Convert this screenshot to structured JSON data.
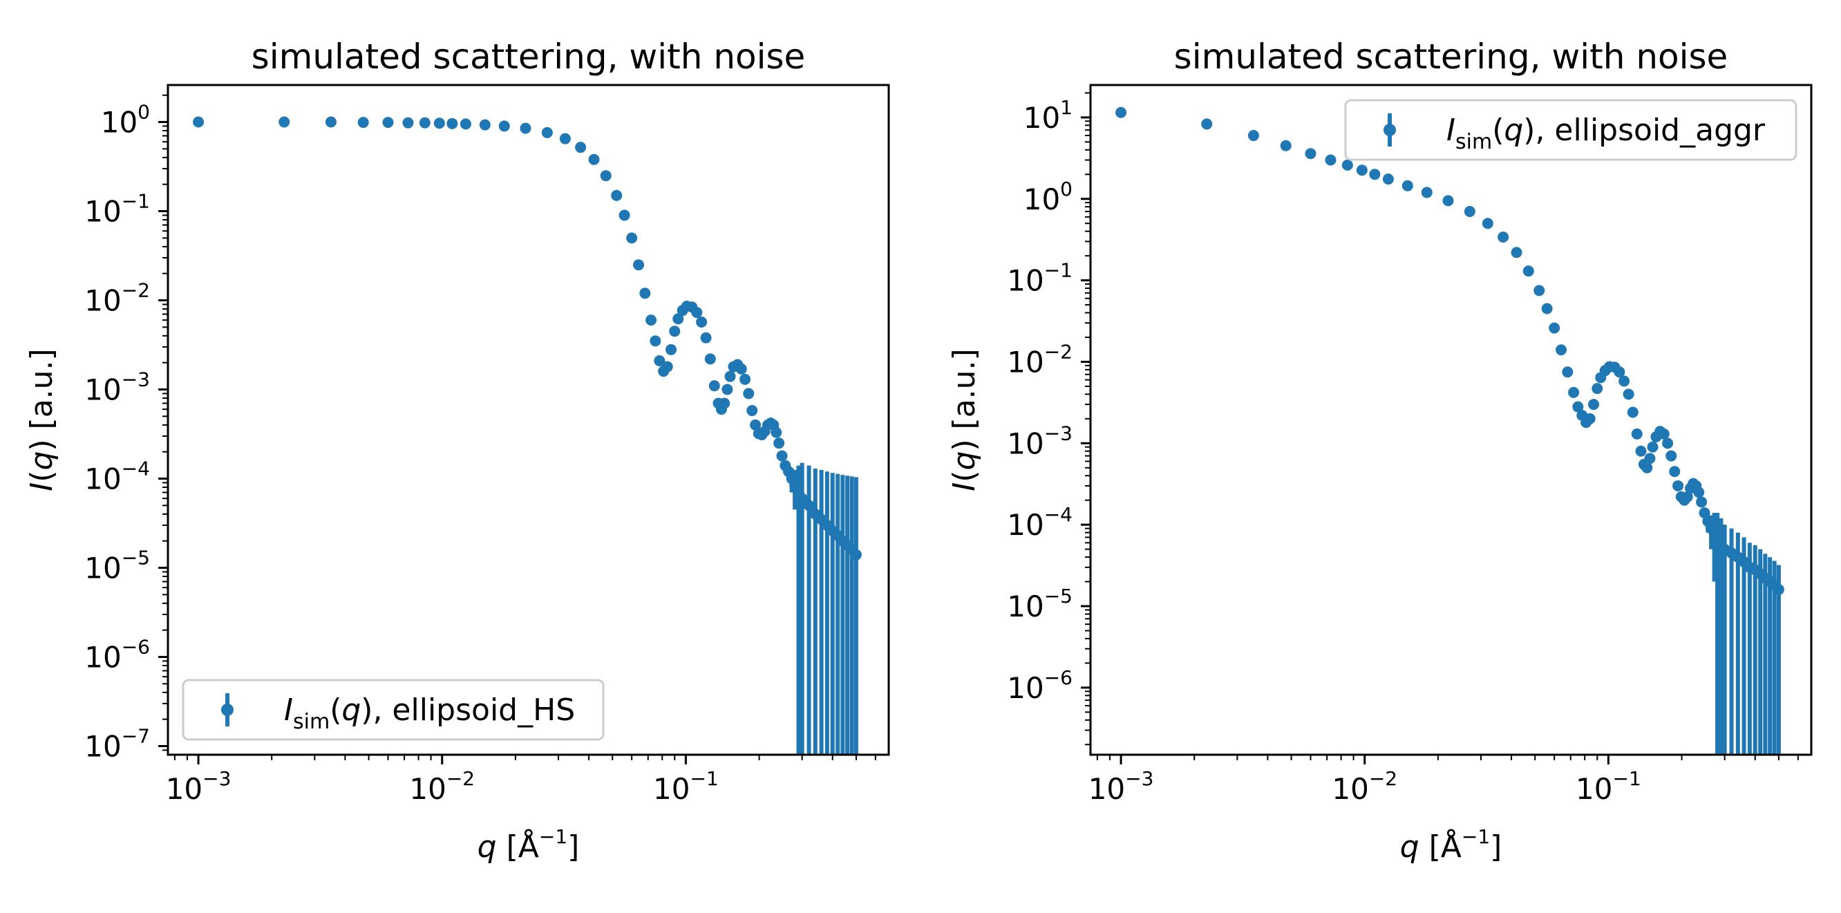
{
  "chart_data": [
    {
      "type": "scatter",
      "title": "simulated scattering, with noise",
      "xlabel": {
        "main": "q",
        "unit_prefix": "[Å",
        "unit_exp": "−1",
        "unit_suffix": "]"
      },
      "ylabel": {
        "main": "I",
        "arg": "(q)",
        "unit": "[a.u.]"
      },
      "xscale": "log",
      "yscale": "log",
      "xlim": [
        0.00075,
        0.68
      ],
      "ylim": [
        8e-08,
        2.6
      ],
      "xticks": [
        {
          "value": 0.001,
          "base": "10",
          "exp": "−3"
        },
        {
          "value": 0.01,
          "base": "10",
          "exp": "−2"
        },
        {
          "value": 0.1,
          "base": "10",
          "exp": "−1"
        }
      ],
      "yticks": [
        {
          "value": 1,
          "base": "10",
          "exp": "0"
        },
        {
          "value": 0.1,
          "base": "10",
          "exp": "−1"
        },
        {
          "value": 0.01,
          "base": "10",
          "exp": "−2"
        },
        {
          "value": 0.001,
          "base": "10",
          "exp": "−3"
        },
        {
          "value": 0.0001,
          "base": "10",
          "exp": "−4"
        },
        {
          "value": 1e-05,
          "base": "10",
          "exp": "−5"
        },
        {
          "value": 1e-06,
          "base": "10",
          "exp": "−6"
        },
        {
          "value": 1e-07,
          "base": "10",
          "exp": "−7"
        }
      ],
      "legend": {
        "placement": "lower left",
        "symbol": "I",
        "subscript": "sim",
        "arg": "(q)",
        "label": ", ellipsoid_HS"
      },
      "color": "#1f77b4",
      "series": [
        {
          "x": [
            0.001,
            0.00225,
            0.0035,
            0.00475,
            0.006,
            0.00725,
            0.0085,
            0.00975,
            0.011,
            0.0125,
            0.015,
            0.018,
            0.022,
            0.027,
            0.032,
            0.037,
            0.042,
            0.047,
            0.052,
            0.056,
            0.06,
            0.064,
            0.068,
            0.072,
            0.075,
            0.078,
            0.081,
            0.084,
            0.087,
            0.09,
            0.093,
            0.097,
            0.101,
            0.106,
            0.111,
            0.116,
            0.121,
            0.126,
            0.131,
            0.136,
            0.14,
            0.144,
            0.148,
            0.152,
            0.157,
            0.163,
            0.169,
            0.175,
            0.181,
            0.187,
            0.193,
            0.199,
            0.205,
            0.211,
            0.217,
            0.223,
            0.229,
            0.235,
            0.241,
            0.248,
            0.256,
            0.264,
            0.272,
            0.28,
            0.29,
            0.3,
            0.32,
            0.34,
            0.36,
            0.38,
            0.4,
            0.42,
            0.44,
            0.46,
            0.48,
            0.5
          ],
          "y": [
            1.0,
            1.0,
            1.0,
            0.99,
            0.99,
            0.98,
            0.98,
            0.97,
            0.96,
            0.95,
            0.93,
            0.9,
            0.85,
            0.76,
            0.65,
            0.52,
            0.38,
            0.25,
            0.15,
            0.09,
            0.05,
            0.025,
            0.012,
            0.006,
            0.0035,
            0.0021,
            0.0016,
            0.0018,
            0.0028,
            0.0045,
            0.0062,
            0.0077,
            0.0086,
            0.0084,
            0.0073,
            0.0057,
            0.0038,
            0.0022,
            0.0011,
            0.0007,
            0.0006,
            0.0007,
            0.001,
            0.0014,
            0.0018,
            0.0019,
            0.0017,
            0.0013,
            0.0009,
            0.00058,
            0.0004,
            0.00032,
            0.00031,
            0.00034,
            0.0004,
            0.00042,
            0.0004,
            0.00033,
            0.00025,
            0.00018,
            0.00014,
            0.00012,
            0.0001,
            8.5e-05,
            7e-05,
            6e-05,
            5e-05,
            4e-05,
            3.5e-05,
            3e-05,
            2.6e-05,
            2.3e-05,
            2e-05,
            1.8e-05,
            1.6e-05,
            1.4e-05
          ],
          "yerr": [
            0,
            0,
            0,
            0,
            0,
            0,
            0,
            0,
            0,
            0,
            0,
            0,
            0,
            0,
            0,
            0,
            0,
            0,
            0,
            0,
            0,
            0,
            0,
            0,
            0,
            0,
            0,
            0,
            0,
            0,
            0,
            0,
            0,
            0,
            0,
            0,
            0,
            0,
            0,
            0,
            0,
            0,
            0,
            0,
            0,
            0,
            0,
            0,
            0,
            0,
            1e-05,
            1e-05,
            1e-05,
            1e-05,
            1e-05,
            1e-05,
            1e-05,
            1e-05,
            1e-05,
            2e-05,
            2e-05,
            2e-05,
            3e-05,
            4e-05,
            7e-05,
            9e-05,
            9e-05,
            9e-05,
            9e-05,
            9e-05,
            9e-05,
            9e-05,
            9e-05,
            9e-05,
            9e-05,
            9e-05
          ]
        }
      ]
    },
    {
      "type": "scatter",
      "title": "simulated scattering, with noise",
      "xlabel": {
        "main": "q",
        "unit_prefix": "[Å",
        "unit_exp": "−1",
        "unit_suffix": "]"
      },
      "ylabel": {
        "main": "I",
        "arg": "(q)",
        "unit": "[a.u.]"
      },
      "xscale": "log",
      "yscale": "log",
      "xlim": [
        0.00075,
        0.68
      ],
      "ylim": [
        1.5e-07,
        25
      ],
      "xticks": [
        {
          "value": 0.001,
          "base": "10",
          "exp": "−3"
        },
        {
          "value": 0.01,
          "base": "10",
          "exp": "−2"
        },
        {
          "value": 0.1,
          "base": "10",
          "exp": "−1"
        }
      ],
      "yticks": [
        {
          "value": 10,
          "base": "10",
          "exp": "1"
        },
        {
          "value": 1,
          "base": "10",
          "exp": "0"
        },
        {
          "value": 0.1,
          "base": "10",
          "exp": "−1"
        },
        {
          "value": 0.01,
          "base": "10",
          "exp": "−2"
        },
        {
          "value": 0.001,
          "base": "10",
          "exp": "−3"
        },
        {
          "value": 0.0001,
          "base": "10",
          "exp": "−4"
        },
        {
          "value": 1e-05,
          "base": "10",
          "exp": "−5"
        },
        {
          "value": 1e-06,
          "base": "10",
          "exp": "−6"
        }
      ],
      "legend": {
        "placement": "upper right",
        "symbol": "I",
        "subscript": "sim",
        "arg": "(q)",
        "label": ", ellipsoid_aggr"
      },
      "color": "#1f77b4",
      "series": [
        {
          "x": [
            0.001,
            0.00225,
            0.0035,
            0.00475,
            0.006,
            0.00725,
            0.0085,
            0.00975,
            0.011,
            0.0125,
            0.015,
            0.018,
            0.022,
            0.027,
            0.032,
            0.037,
            0.042,
            0.047,
            0.052,
            0.056,
            0.06,
            0.064,
            0.068,
            0.072,
            0.075,
            0.078,
            0.081,
            0.084,
            0.087,
            0.09,
            0.093,
            0.097,
            0.101,
            0.106,
            0.111,
            0.116,
            0.121,
            0.126,
            0.131,
            0.136,
            0.14,
            0.144,
            0.148,
            0.152,
            0.157,
            0.163,
            0.169,
            0.175,
            0.181,
            0.187,
            0.193,
            0.199,
            0.205,
            0.211,
            0.217,
            0.223,
            0.229,
            0.235,
            0.241,
            0.248,
            0.256,
            0.264,
            0.272,
            0.28,
            0.29,
            0.3,
            0.32,
            0.34,
            0.36,
            0.38,
            0.4,
            0.42,
            0.44,
            0.46,
            0.48,
            0.5
          ],
          "y": [
            11.5,
            8.3,
            6.0,
            4.5,
            3.6,
            3.0,
            2.6,
            2.25,
            2.0,
            1.75,
            1.45,
            1.2,
            0.95,
            0.7,
            0.5,
            0.34,
            0.22,
            0.13,
            0.075,
            0.045,
            0.026,
            0.014,
            0.0075,
            0.0042,
            0.0028,
            0.0022,
            0.0018,
            0.002,
            0.003,
            0.0047,
            0.0064,
            0.0078,
            0.0087,
            0.0086,
            0.0075,
            0.0058,
            0.004,
            0.0024,
            0.0013,
            0.0008,
            0.00055,
            0.0005,
            0.00065,
            0.0009,
            0.0012,
            0.0014,
            0.0013,
            0.001,
            0.0007,
            0.00045,
            0.0003,
            0.00022,
            0.0002,
            0.00022,
            0.00028,
            0.00032,
            0.0003,
            0.00025,
            0.00019,
            0.00014,
            0.00011,
            9e-05,
            8e-05,
            7e-05,
            6e-05,
            5e-05,
            4.5e-05,
            4e-05,
            3.5e-05,
            3e-05,
            2.8e-05,
            2.5e-05,
            2.2e-05,
            2e-05,
            1.8e-05,
            1.6e-05
          ],
          "yerr": [
            0,
            0,
            0,
            0,
            0,
            0,
            0,
            0,
            0,
            0,
            0,
            0,
            0,
            0,
            0,
            0,
            0,
            0,
            0,
            0,
            0,
            0,
            0,
            0,
            0,
            0,
            0,
            0,
            0,
            0,
            0,
            0,
            0,
            0,
            0,
            0,
            0,
            0,
            0,
            0,
            0,
            0,
            0,
            0,
            0,
            0,
            0,
            0,
            0,
            0,
            1e-05,
            1e-05,
            1e-05,
            1e-05,
            1e-05,
            1e-05,
            1e-05,
            1e-05,
            1e-05,
            2e-05,
            3e-05,
            4e-05,
            6e-05,
            7e-05,
            6e-05,
            5e-05,
            4.5e-05,
            4e-05,
            3.5e-05,
            3e-05,
            2.8e-05,
            2.5e-05,
            2.2e-05,
            2e-05,
            1.8e-05,
            1.6e-05
          ]
        }
      ]
    }
  ]
}
